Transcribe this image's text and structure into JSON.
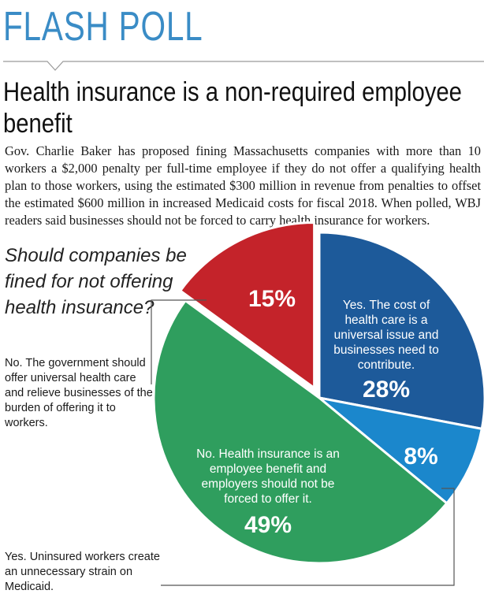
{
  "header": {
    "kicker": "FLASH POLL",
    "headline": "Health insurance is a non-required employee benefit",
    "intro": "Gov. Charlie Baker has proposed fining Massachusetts companies with more than 10 workers a $2,000 penalty per full-time employee if they do not offer a qualifying health plan to those workers, using the estimated $300 million in revenue from penalties to offset the estimated $600 million in increased Medicaid costs for fiscal 2018. When polled, WBJ readers said businesses should not be forced to carry health insurance for workers."
  },
  "chart_data": {
    "type": "pie",
    "title": "Should companies be fined for not offering health insurance?",
    "slices": [
      {
        "label": "Yes. The cost of health care is a universal issue and businesses need to contribute.",
        "value": 28,
        "display": "28%",
        "color": "#1d5a9a"
      },
      {
        "label": "Yes. Uninsured workers create an unnecessary strain on Medicaid.",
        "value": 8,
        "display": "8%",
        "color": "#1b87cc"
      },
      {
        "label": "No. Health insurance is an employee benefit and employers should not be forced to offer it.",
        "value": 49,
        "display": "49%",
        "color": "#2f9e5e"
      },
      {
        "label": "No. The government should offer universal health care and relieve businesses of the burden of offering it to workers.",
        "value": 15,
        "display": "15%",
        "color": "#c4232a"
      }
    ],
    "start_angle_deg": 0,
    "direction": "clockwise"
  }
}
